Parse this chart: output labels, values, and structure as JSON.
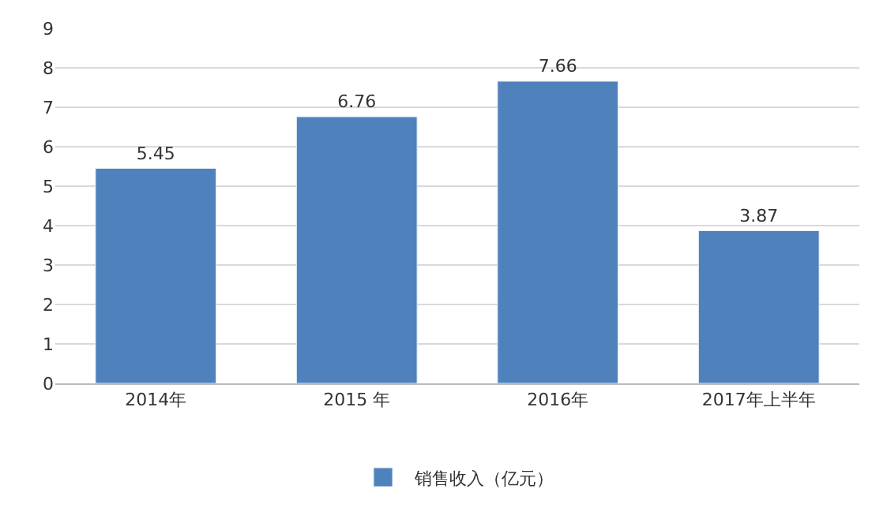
{
  "chart_data": {
    "type": "bar",
    "categories": [
      "2014年",
      "2015 年",
      "2016年",
      "2017年上半年"
    ],
    "series": [
      {
        "name": "销售收入（亿元）",
        "color": "#4f81bd",
        "values": [
          5.45,
          6.76,
          7.66,
          3.87
        ]
      }
    ],
    "ylim": [
      0,
      9
    ],
    "yticks": [
      0,
      1,
      2,
      3,
      4,
      5,
      6,
      7,
      8,
      9
    ],
    "grid": "y",
    "legend": "bottom",
    "data_labels": true
  }
}
